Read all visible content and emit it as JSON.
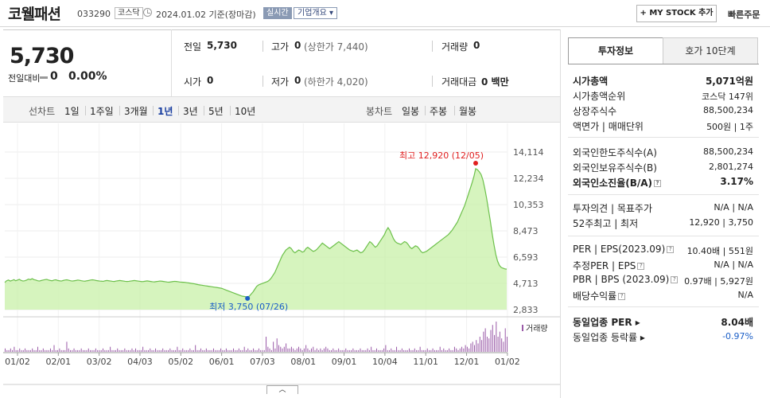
{
  "header": {
    "name": "코웰패션",
    "code": "033290",
    "market": "코스닥",
    "as_of": "2024.01.02  기준(장마감)",
    "live": "실시간",
    "overview": "기업개요 ▾",
    "mystock": "+ MY STOCK 추가",
    "quick_order": "빠른주문"
  },
  "summary": {
    "price": "5,730",
    "change_label": "전일대비",
    "change": "0",
    "change_pct": "0.00%",
    "prev_label": "전일",
    "prev": "5,730",
    "high_label": "고가",
    "high": "0",
    "upper_limit": "(상한가 7,440)",
    "volume_label": "거래량",
    "volume": "0",
    "open_label": "시가",
    "open": "0",
    "low_label": "저가",
    "low": "0",
    "lower_limit": "(하한가 4,020)",
    "amount_label": "거래대금",
    "amount": "0 백만"
  },
  "period": {
    "line_label": "선차트",
    "line_options": [
      "1일",
      "1주일",
      "3개월",
      "1년",
      "3년",
      "5년",
      "10년"
    ],
    "selected": "1년",
    "candle_label": "봉차트",
    "candle_options": [
      "일봉",
      "주봉",
      "월봉"
    ]
  },
  "chart_data": {
    "type": "area",
    "y_ticks": [
      "14,114",
      "12,234",
      "10,353",
      "8,473",
      "6,593",
      "4,713",
      "2,833"
    ],
    "ylim": [
      2833,
      14114
    ],
    "x_labels": [
      "01/02",
      "02/01",
      "03/02",
      "04/03",
      "05/02",
      "06/01",
      "07/03",
      "08/01",
      "09/01",
      "10/04",
      "11/01",
      "12/01",
      "01/02"
    ],
    "max_label": "최고 12,920 (12/05)",
    "min_label": "최저 3,750 (07/26)",
    "max_value": 12920,
    "min_value": 3750,
    "volume_label": "거래량",
    "price": [
      4780,
      4900,
      4950,
      4880,
      4920,
      4980,
      4900,
      4950,
      5000,
      4920,
      4880,
      4900,
      4950,
      5020,
      4980,
      5050,
      4980,
      4950,
      4900,
      4880,
      4920,
      4950,
      4980,
      5000,
      4950,
      4920,
      4900,
      4950,
      4970,
      4920,
      4900,
      4880,
      4920,
      4950,
      4970,
      4940,
      4900,
      4880,
      4900,
      4920,
      4950,
      4930,
      4900,
      4880,
      4870,
      4900,
      4920,
      4950,
      4970,
      4950,
      4920,
      4900,
      4880,
      4870,
      4860,
      4900,
      4920,
      4900,
      4880,
      4860,
      4850,
      4880,
      4900,
      4920,
      4900,
      4880,
      4860,
      4850,
      4860,
      4880,
      4900,
      4920,
      4900,
      4880,
      4860,
      4840,
      4850,
      4870,
      4890,
      4870,
      4850,
      4830,
      4820,
      4840,
      4860,
      4880,
      4870,
      4850,
      4830,
      4810,
      4800,
      4820,
      4840,
      4860,
      4850,
      4830,
      4810,
      4800,
      4790,
      4780,
      4760,
      4740,
      4720,
      4700,
      4680,
      4650,
      4620,
      4600,
      4580,
      4560,
      4540,
      4520,
      4500,
      4480,
      4460,
      4440,
      4420,
      4400,
      4380,
      4350,
      4300,
      4250,
      4200,
      4150,
      4100,
      4050,
      4000,
      3950,
      3900,
      3850,
      3800,
      3780,
      3760,
      3750,
      3800,
      3950,
      4100,
      4300,
      4500,
      4600,
      4650,
      4700,
      4750,
      4800,
      4850,
      4950,
      5100,
      5300,
      5500,
      5800,
      6100,
      6400,
      6700,
      6900,
      7100,
      7200,
      7300,
      7200,
      7000,
      6900,
      7000,
      7100,
      7050,
      6950,
      7000,
      7200,
      7300,
      7200,
      7100,
      7000,
      7050,
      7150,
      7300,
      7450,
      7600,
      7500,
      7400,
      7300,
      7200,
      7300,
      7400,
      7500,
      7600,
      7700,
      7600,
      7500,
      7400,
      7300,
      7200,
      7100,
      7050,
      7000,
      7050,
      7100,
      7000,
      6900,
      6950,
      7100,
      7300,
      7500,
      7700,
      7600,
      7450,
      7300,
      7400,
      7600,
      7800,
      8000,
      8200,
      8500,
      8700,
      8500,
      8200,
      7900,
      7700,
      7600,
      7550,
      7500,
      7600,
      7700,
      7650,
      7500,
      7300,
      7200,
      7300,
      7400,
      7350,
      7200,
      7000,
      6900,
      6950,
      7000,
      7100,
      7200,
      7300,
      7400,
      7500,
      7600,
      7700,
      7800,
      7900,
      8000,
      8100,
      8200,
      8350,
      8500,
      8700,
      8900,
      9100,
      9400,
      9700,
      10000,
      10300,
      10700,
      11100,
      11500,
      11900,
      12350,
      12920,
      12850,
      12700,
      12500,
      12100,
      11500,
      10800,
      10000,
      9200,
      8300,
      7500,
      6800,
      6300,
      6000,
      5850,
      5800,
      5750,
      5730
    ],
    "volume": [
      2,
      1,
      1,
      2,
      1,
      3,
      1,
      1,
      2,
      1,
      1,
      2,
      1,
      1,
      1,
      2,
      1,
      1,
      3,
      1,
      1,
      2,
      1,
      1,
      1,
      2,
      1,
      4,
      1,
      1,
      2,
      1,
      1,
      1,
      6,
      2,
      1,
      1,
      2,
      1,
      1,
      1,
      2,
      1,
      1,
      1,
      2,
      1,
      1,
      1,
      2,
      1,
      1,
      1,
      2,
      1,
      1,
      1,
      3,
      1,
      1,
      1,
      2,
      1,
      1,
      1,
      2,
      1,
      1,
      1,
      2,
      1,
      2,
      1,
      1,
      1,
      3,
      1,
      1,
      1,
      2,
      1,
      1,
      2,
      1,
      1,
      1,
      2,
      1,
      1,
      1,
      2,
      1,
      1,
      1,
      3,
      1,
      1,
      2,
      1,
      1,
      1,
      2,
      1,
      1,
      4,
      1,
      1,
      2,
      1,
      1,
      2,
      1,
      1,
      1,
      2,
      1,
      1,
      1,
      2,
      1,
      1,
      2,
      1,
      1,
      1,
      2,
      1,
      1,
      2,
      1,
      1,
      3,
      1,
      2,
      1,
      1,
      2,
      1,
      1,
      2,
      1,
      1,
      1,
      9,
      3,
      2,
      1,
      6,
      2,
      8,
      4,
      3,
      2,
      3,
      5,
      2,
      2,
      3,
      2,
      1,
      2,
      3,
      2,
      1,
      2,
      4,
      2,
      1,
      2,
      3,
      1,
      2,
      1,
      2,
      1,
      2,
      3,
      2,
      1,
      1,
      2,
      1,
      1,
      2,
      1,
      1,
      1,
      2,
      1,
      1,
      1,
      2,
      1,
      1,
      1,
      2,
      1,
      1,
      1,
      2,
      1,
      3,
      1,
      1,
      2,
      1,
      1,
      1,
      2,
      4,
      1,
      1,
      2,
      1,
      1,
      3,
      1,
      1,
      2,
      1,
      1,
      1,
      2,
      1,
      1,
      2,
      1,
      1,
      3,
      1,
      1,
      1,
      2,
      1,
      1,
      2,
      1,
      1,
      1,
      3,
      1,
      2,
      1,
      1,
      2,
      1,
      1,
      3,
      2,
      1,
      2,
      3,
      2,
      4,
      3,
      2,
      5,
      6,
      4,
      7,
      5,
      9,
      7,
      12,
      14,
      9,
      8,
      13,
      16,
      10,
      18,
      9,
      12,
      8,
      6,
      14,
      9
    ],
    "line_color": "#6cc04a",
    "fill_color": "#c8f0a8",
    "max_color": "#e02020",
    "min_color": "#1a5ec7",
    "volume_color": "#9a5aa8"
  },
  "invest": {
    "tab_info": "투자정보",
    "tab_order": "호가 10단계",
    "g1": [
      {
        "label": "시가총액",
        "value": "5,071억원",
        "bold": true
      },
      {
        "label": "시가총액순위",
        "value": "코스닥 147위"
      },
      {
        "label": "상장주식수",
        "value": "88,500,234"
      },
      {
        "label": "액면가 | 매매단위",
        "value": "500원 | 1주"
      }
    ],
    "g2": [
      {
        "label": "외국인한도주식수(A)",
        "value": "88,500,234"
      },
      {
        "label": "외국인보유주식수(B)",
        "value": "2,801,274"
      },
      {
        "label": "외국인소진율(B/A)",
        "value": "3.17%",
        "bold": true,
        "q": true
      }
    ],
    "g3": [
      {
        "label": "투자의견 | 목표주가",
        "value": "N/A | N/A"
      },
      {
        "label": "52주최고 | 최저",
        "value": "12,920 | 3,750"
      }
    ],
    "g4": [
      {
        "label": "PER | EPS(2023.09)",
        "value": "10.40배 | 551원",
        "q": true
      },
      {
        "label": "추정PER | EPS",
        "value": "N/A | N/A",
        "q": true
      },
      {
        "label": "PBR | BPS (2023.09)",
        "value": "0.97배 | 5,927원",
        "q": true
      },
      {
        "label": "배당수익률",
        "value": "N/A",
        "q": true
      }
    ],
    "g5": [
      {
        "label": "동일업종 PER ▸",
        "value": "8.04배",
        "bold": true
      },
      {
        "label": "동일업종 등락률 ▸",
        "value": "-0.97%",
        "blue": true
      }
    ],
    "toggle": "︿"
  }
}
